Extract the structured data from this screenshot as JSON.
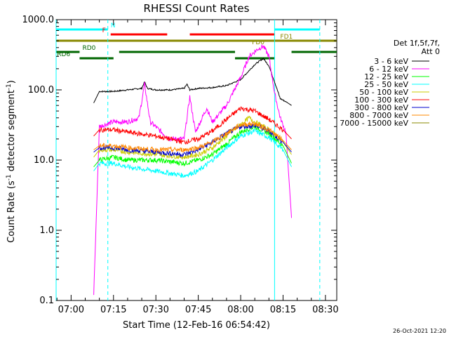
{
  "chart_data": {
    "type": "line",
    "title": "RHESSI Count Rates",
    "xlabel": "Start Time (12-Feb-16 06:54:42)",
    "ylabel": "Count Rate (s⁻¹ detector segment⁻¹)",
    "ylabel_main": "Count Rate (s",
    "ylabel_exp1": "-1",
    "ylabel_mid": " detector segment",
    "ylabel_exp2": "-1",
    "ylabel_end": ")",
    "y_scale": "log",
    "ylim": [
      0.1,
      1000.0
    ],
    "xlim": [
      "06:54:42",
      "08:34:00"
    ],
    "x_ticks": [
      "07:00",
      "07:15",
      "07:30",
      "07:45",
      "08:00",
      "08:15",
      "08:30"
    ],
    "y_ticks": [
      "0.1",
      "1.0",
      "10.0",
      "100.0",
      "1000.0"
    ],
    "grid": false,
    "legend_position": "right",
    "legend_header": [
      "Det 1f,5f,7f,",
      "Att 0"
    ],
    "footer_date": "26-Oct-2021 12:20",
    "data_start": "07:08",
    "data_end": "08:18",
    "series": [
      {
        "name": "3 - 6 keV",
        "color": "#000000",
        "x": [
          "07:08",
          "07:10",
          "07:15",
          "07:20",
          "07:25",
          "07:26",
          "07:27",
          "07:30",
          "07:35",
          "07:40",
          "07:41",
          "07:42",
          "07:45",
          "07:50",
          "07:55",
          "08:00",
          "08:05",
          "08:08",
          "08:10",
          "08:12",
          "08:14",
          "08:16",
          "08:18"
        ],
        "y": [
          65,
          95,
          95,
          100,
          105,
          130,
          105,
          100,
          100,
          105,
          120,
          100,
          105,
          108,
          115,
          140,
          230,
          280,
          220,
          130,
          75,
          68,
          60
        ]
      },
      {
        "name": "6 - 12 keV",
        "color": "#ff00ff",
        "x": [
          "07:08",
          "07:10",
          "07:15",
          "07:20",
          "07:24",
          "07:26",
          "07:28",
          "07:32",
          "07:35",
          "07:40",
          "07:42",
          "07:44",
          "07:48",
          "07:50",
          "07:55",
          "08:00",
          "08:03",
          "08:06",
          "08:08",
          "08:10",
          "08:12",
          "08:14",
          "08:16",
          "08:18"
        ],
        "y": [
          0.12,
          30,
          35,
          35,
          40,
          120,
          35,
          25,
          20,
          20,
          80,
          25,
          55,
          35,
          60,
          150,
          300,
          380,
          420,
          300,
          90,
          40,
          25,
          1.5
        ]
      },
      {
        "name": "12 - 25 keV",
        "color": "#00ff00",
        "x": [
          "07:08",
          "07:10",
          "07:15",
          "07:20",
          "07:30",
          "07:40",
          "07:45",
          "07:50",
          "07:55",
          "08:00",
          "08:05",
          "08:10",
          "08:15",
          "08:18"
        ],
        "y": [
          8,
          10,
          11,
          10,
          10,
          9,
          10,
          12,
          17,
          25,
          30,
          24,
          16,
          9
        ]
      },
      {
        "name": "25 - 50 keV",
        "color": "#00ffff",
        "x": [
          "07:08",
          "07:10",
          "07:15",
          "07:20",
          "07:30",
          "07:40",
          "07:45",
          "07:50",
          "07:55",
          "08:00",
          "08:05",
          "08:10",
          "08:15",
          "08:18"
        ],
        "y": [
          7,
          9,
          9,
          8,
          7,
          6,
          7,
          10,
          15,
          22,
          26,
          21,
          14,
          8
        ]
      },
      {
        "name": "50 - 100 keV",
        "color": "#cccc00",
        "x": [
          "07:08",
          "07:10",
          "07:15",
          "07:20",
          "07:30",
          "07:40",
          "07:45",
          "07:50",
          "07:55",
          "08:00",
          "08:03",
          "08:05",
          "08:10",
          "08:15",
          "08:18"
        ],
        "y": [
          11,
          14,
          14,
          13,
          12,
          11,
          12,
          15,
          22,
          32,
          40,
          35,
          27,
          18,
          12
        ]
      },
      {
        "name": "100 - 300 keV",
        "color": "#ff0000",
        "x": [
          "07:08",
          "07:10",
          "07:15",
          "07:20",
          "07:30",
          "07:40",
          "07:45",
          "07:50",
          "07:55",
          "08:00",
          "08:05",
          "08:10",
          "08:15",
          "08:18"
        ],
        "y": [
          22,
          27,
          27,
          25,
          22,
          18,
          20,
          26,
          38,
          55,
          50,
          38,
          27,
          20
        ]
      },
      {
        "name": "300 - 800 keV",
        "color": "#0000cc",
        "x": [
          "07:08",
          "07:10",
          "07:15",
          "07:20",
          "07:30",
          "07:40",
          "07:45",
          "07:50",
          "07:55",
          "08:00",
          "08:05",
          "08:10",
          "08:15",
          "08:18"
        ],
        "y": [
          13,
          15,
          15,
          14,
          13,
          12,
          14,
          18,
          24,
          30,
          31,
          26,
          18,
          13
        ]
      },
      {
        "name": "800 - 7000 keV",
        "color": "#ff8800",
        "x": [
          "07:08",
          "07:10",
          "07:15",
          "07:20",
          "07:30",
          "07:40",
          "07:45",
          "07:50",
          "07:55",
          "08:00",
          "08:05",
          "08:10",
          "08:15",
          "08:18"
        ],
        "y": [
          14,
          16,
          16,
          15,
          14,
          14,
          15,
          18,
          24,
          32,
          33,
          27,
          19,
          14
        ]
      },
      {
        "name": "7000 - 15000 keV",
        "color": "#888800",
        "x": [],
        "y": []
      }
    ],
    "vertical_lines": [
      {
        "time": "06:54:42",
        "color": "#00ffff",
        "style": "solid"
      },
      {
        "time": "07:13",
        "color": "#00ffff",
        "style": "dashed"
      },
      {
        "time": "08:12",
        "color": "#00ffff",
        "style": "solid"
      },
      {
        "time": "08:28",
        "color": "#00ffff",
        "style": "dashed"
      }
    ],
    "flag_bars": [
      {
        "label": "N",
        "color": "#00ffff",
        "level": 0,
        "segments": [
          [
            "06:54:42",
            "07:13"
          ],
          [
            "08:12",
            "08:28"
          ]
        ],
        "label_time": "07:14"
      },
      {
        "label": "F",
        "color": "#ff0000",
        "level": 1,
        "segments": [
          [
            "07:14",
            "07:34"
          ],
          [
            "07:42",
            "08:12"
          ]
        ],
        "label_time": "07:11"
      },
      {
        "label": "FD1",
        "color": "#888800",
        "level": 2,
        "segments": [
          [
            "06:54:42",
            "08:34"
          ]
        ],
        "label_time": "08:14"
      },
      {
        "label": "FD0",
        "color": "#888800",
        "level": 3,
        "segments": [],
        "label_time": "08:04"
      },
      {
        "label": "RD0",
        "color": "#006600",
        "level": 4,
        "segments": [
          [
            "06:54:42",
            "07:03"
          ],
          [
            "07:17",
            "07:58"
          ],
          [
            "08:18",
            "08:34"
          ]
        ],
        "label_time": "07:04"
      },
      {
        "label": "RD6",
        "color": "#006600",
        "level": 5,
        "segments": [
          [
            "07:03",
            "07:15"
          ],
          [
            "07:58",
            "08:12"
          ]
        ],
        "label_time": "06:55"
      }
    ]
  }
}
